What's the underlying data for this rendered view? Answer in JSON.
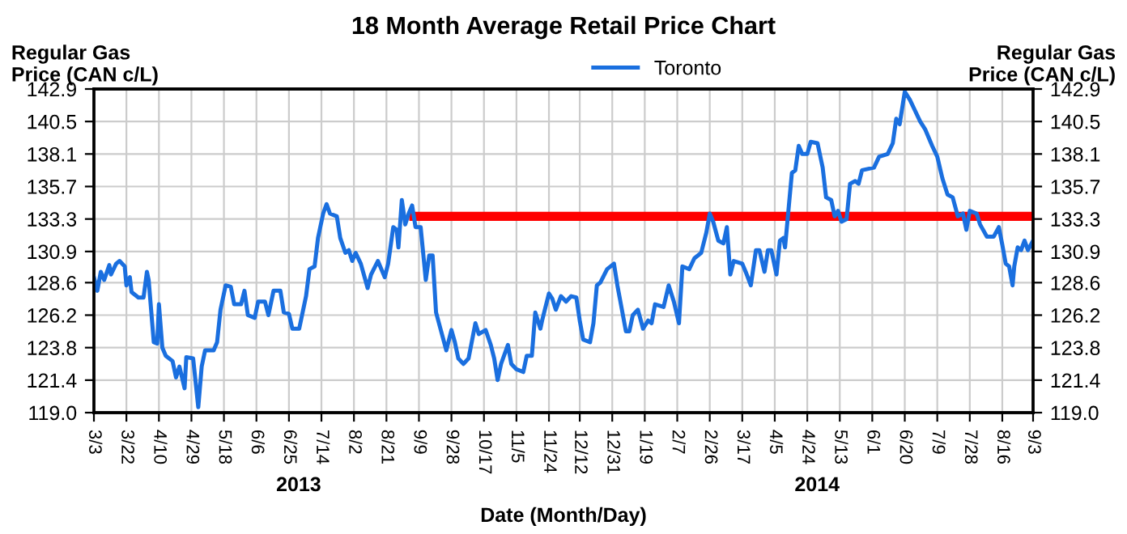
{
  "chart_data": {
    "type": "line",
    "title": "18 Month Average Retail Price Chart",
    "xlabel": "Date (Month/Day)",
    "ylabel": "Regular Gas\nPrice (CAN c/L)",
    "y2label": "Regular Gas\nPrice (CAN c/L)",
    "annotations": [
      "2013",
      "2014"
    ],
    "xlim": [
      "2013-03-03",
      "2014-09-03"
    ],
    "xticks": [
      {
        "value": "2013-03-03",
        "label": "3/3"
      },
      {
        "value": "2013-03-22",
        "label": "3/22"
      },
      {
        "value": "2013-04-10",
        "label": "4/10"
      },
      {
        "value": "2013-04-29",
        "label": "4/29"
      },
      {
        "value": "2013-05-18",
        "label": "5/18"
      },
      {
        "value": "2013-06-06",
        "label": "6/6"
      },
      {
        "value": "2013-06-25",
        "label": "6/25"
      },
      {
        "value": "2013-07-14",
        "label": "7/14"
      },
      {
        "value": "2013-08-02",
        "label": "8/2"
      },
      {
        "value": "2013-08-21",
        "label": "8/21"
      },
      {
        "value": "2013-09-09",
        "label": "9/9"
      },
      {
        "value": "2013-09-28",
        "label": "9/28"
      },
      {
        "value": "2013-10-17",
        "label": "10/17"
      },
      {
        "value": "2013-11-05",
        "label": "11/5"
      },
      {
        "value": "2013-11-24",
        "label": "11/24"
      },
      {
        "value": "2013-12-12",
        "label": "12/12"
      },
      {
        "value": "2013-12-31",
        "label": "12/31"
      },
      {
        "value": "2014-01-19",
        "label": "1/19"
      },
      {
        "value": "2014-02-07",
        "label": "2/7"
      },
      {
        "value": "2014-02-26",
        "label": "2/26"
      },
      {
        "value": "2014-03-17",
        "label": "3/17"
      },
      {
        "value": "2014-04-05",
        "label": "4/5"
      },
      {
        "value": "2014-04-24",
        "label": "4/24"
      },
      {
        "value": "2014-05-13",
        "label": "5/13"
      },
      {
        "value": "2014-06-01",
        "label": "6/1"
      },
      {
        "value": "2014-06-20",
        "label": "6/20"
      },
      {
        "value": "2014-07-09",
        "label": "7/9"
      },
      {
        "value": "2014-07-28",
        "label": "7/28"
      },
      {
        "value": "2014-08-16",
        "label": "8/16"
      },
      {
        "value": "2014-09-03",
        "label": "9/3"
      }
    ],
    "ylim": [
      119.0,
      142.9
    ],
    "yticks": [
      {
        "value": 119.0,
        "label": "119.0"
      },
      121.4,
      123.8,
      126.2,
      128.6,
      130.9,
      133.3,
      135.7,
      138.1,
      140.5,
      142.9
    ],
    "y2lim": [
      119.0,
      142.9
    ],
    "y2ticks": [
      {
        "value": 119.0,
        "label": "119.0"
      },
      121.4,
      123.8,
      126.2,
      128.6,
      130.9,
      133.3,
      135.7,
      138.1,
      140.5,
      142.9
    ],
    "grid": true,
    "legend": "top",
    "marker": "none",
    "line_style": "solid",
    "series": [
      {
        "name": "Toronto",
        "color": "#1a6fdf",
        "x": [
          "2013-03-03",
          "2013-03-05",
          "2013-03-07",
          "2013-03-09",
          "2013-03-12",
          "2013-03-13",
          "2013-03-16",
          "2013-03-18",
          "2013-03-21",
          "2013-03-22",
          "2013-03-24",
          "2013-03-25",
          "2013-03-29",
          "2013-04-01",
          "2013-04-03",
          "2013-04-04",
          "2013-04-07",
          "2013-04-09",
          "2013-04-10",
          "2013-04-12",
          "2013-04-14",
          "2013-04-18",
          "2013-04-20",
          "2013-04-22",
          "2013-04-25",
          "2013-04-26",
          "2013-04-30",
          "2013-05-03",
          "2013-05-05",
          "2013-05-07",
          "2013-05-12",
          "2013-05-14",
          "2013-05-16",
          "2013-05-19",
          "2013-05-22",
          "2013-05-24",
          "2013-05-28",
          "2013-05-30",
          "2013-06-01",
          "2013-06-05",
          "2013-06-07",
          "2013-06-11",
          "2013-06-13",
          "2013-06-16",
          "2013-06-20",
          "2013-06-22",
          "2013-06-25",
          "2013-06-27",
          "2013-07-01",
          "2013-07-05",
          "2013-07-07",
          "2013-07-10",
          "2013-07-12",
          "2013-07-15",
          "2013-07-17",
          "2013-07-19",
          "2013-07-23",
          "2013-07-25",
          "2013-07-28",
          "2013-07-30",
          "2013-08-01",
          "2013-08-03",
          "2013-08-06",
          "2013-08-10",
          "2013-08-12",
          "2013-08-16",
          "2013-08-20",
          "2013-08-22",
          "2013-08-25",
          "2013-08-27",
          "2013-08-28",
          "2013-08-30",
          "2013-09-01",
          "2013-09-03",
          "2013-09-05",
          "2013-09-07",
          "2013-09-10",
          "2013-09-13",
          "2013-09-15",
          "2013-09-17",
          "2013-09-19",
          "2013-09-22",
          "2013-09-25",
          "2013-09-28",
          "2013-09-30",
          "2013-10-02",
          "2013-10-05",
          "2013-10-08",
          "2013-10-12",
          "2013-10-14",
          "2013-10-18",
          "2013-10-21",
          "2013-10-23",
          "2013-10-25",
          "2013-10-27",
          "2013-10-31",
          "2013-11-02",
          "2013-11-05",
          "2013-11-09",
          "2013-11-11",
          "2013-11-14",
          "2013-11-16",
          "2013-11-19",
          "2013-11-20",
          "2013-11-24",
          "2013-11-26",
          "2013-11-28",
          "2013-12-01",
          "2013-12-04",
          "2013-12-07",
          "2013-12-10",
          "2013-12-12",
          "2013-12-14",
          "2013-12-18",
          "2013-12-20",
          "2013-12-22",
          "2013-12-24",
          "2013-12-28",
          "2014-01-01",
          "2014-01-03",
          "2014-01-08",
          "2014-01-10",
          "2014-01-12",
          "2014-01-15",
          "2014-01-18",
          "2014-01-21",
          "2014-01-23",
          "2014-01-25",
          "2014-01-30",
          "2014-02-02",
          "2014-02-05",
          "2014-02-08",
          "2014-02-10",
          "2014-02-14",
          "2014-02-17",
          "2014-02-21",
          "2014-02-24",
          "2014-02-26",
          "2014-02-28",
          "2014-03-03",
          "2014-03-06",
          "2014-03-08",
          "2014-03-10",
          "2014-03-12",
          "2014-03-17",
          "2014-03-19",
          "2014-03-22",
          "2014-03-25",
          "2014-03-27",
          "2014-03-30",
          "2014-04-01",
          "2014-04-03",
          "2014-04-06",
          "2014-04-08",
          "2014-04-10",
          "2014-04-11",
          "2014-04-15",
          "2014-04-17",
          "2014-04-19",
          "2014-04-21",
          "2014-04-24",
          "2014-04-26",
          "2014-04-30",
          "2014-05-03",
          "2014-05-05",
          "2014-05-08",
          "2014-05-10",
          "2014-05-12",
          "2014-05-14",
          "2014-05-17",
          "2014-05-19",
          "2014-05-22",
          "2014-05-24",
          "2014-05-26",
          "2014-06-02",
          "2014-06-05",
          "2014-06-10",
          "2014-06-13",
          "2014-06-15",
          "2014-06-17",
          "2014-06-20",
          "2014-06-23",
          "2014-06-26",
          "2014-06-29",
          "2014-07-02",
          "2014-07-06",
          "2014-07-09",
          "2014-07-12",
          "2014-07-15",
          "2014-07-18",
          "2014-07-21",
          "2014-07-24",
          "2014-07-26",
          "2014-07-28",
          "2014-08-01",
          "2014-08-03",
          "2014-08-07",
          "2014-08-11",
          "2014-08-14",
          "2014-08-16",
          "2014-08-18",
          "2014-08-20",
          "2014-08-22",
          "2014-08-23",
          "2014-08-25",
          "2014-08-27",
          "2014-08-29",
          "2014-08-31",
          "2014-09-03"
        ],
        "values": [
          129.0,
          128.0,
          129.4,
          128.8,
          129.9,
          129.2,
          130.0,
          130.2,
          129.8,
          128.4,
          129.0,
          127.9,
          127.5,
          127.5,
          129.4,
          128.8,
          124.2,
          124.1,
          127.0,
          123.8,
          123.2,
          122.8,
          121.6,
          122.4,
          120.8,
          123.1,
          123.0,
          119.4,
          122.4,
          123.6,
          123.6,
          124.2,
          126.6,
          128.4,
          128.3,
          127.0,
          127.0,
          128.0,
          126.2,
          126.0,
          127.2,
          127.2,
          126.2,
          128.0,
          128.0,
          126.4,
          126.3,
          125.2,
          125.2,
          127.6,
          129.6,
          129.8,
          131.9,
          133.7,
          134.4,
          133.7,
          133.5,
          131.9,
          130.8,
          131.0,
          130.2,
          130.8,
          130.0,
          128.2,
          129.2,
          130.2,
          129.0,
          130.0,
          132.7,
          132.5,
          131.2,
          134.7,
          132.9,
          133.7,
          134.3,
          132.7,
          132.7,
          128.8,
          130.6,
          130.6,
          126.4,
          125.0,
          123.6,
          125.1,
          124.2,
          123.0,
          122.6,
          123.0,
          125.6,
          124.8,
          125.1,
          124.0,
          123.0,
          121.4,
          122.6,
          124.0,
          122.6,
          122.2,
          122.0,
          123.2,
          123.2,
          126.4,
          125.2,
          125.8,
          127.8,
          127.4,
          126.6,
          127.6,
          127.2,
          127.6,
          127.5,
          125.8,
          124.4,
          124.2,
          125.6,
          128.4,
          128.6,
          129.6,
          130.0,
          128.4,
          125.0,
          125.0,
          126.2,
          126.6,
          125.2,
          125.8,
          125.6,
          127.0,
          126.8,
          128.4,
          127.2,
          125.6,
          129.8,
          129.6,
          130.4,
          130.8,
          132.3,
          133.7,
          133.1,
          131.7,
          131.5,
          132.7,
          129.2,
          130.2,
          130.0,
          129.4,
          128.4,
          131.0,
          131.0,
          129.4,
          131.0,
          131.0,
          129.2,
          131.7,
          131.9,
          131.2,
          136.7,
          136.9,
          138.7,
          138.1,
          138.1,
          139.0,
          138.9,
          137.1,
          134.9,
          134.7,
          133.5,
          133.9,
          133.1,
          133.3,
          135.9,
          136.1,
          135.9,
          136.9,
          137.1,
          137.9,
          138.1,
          138.9,
          140.7,
          140.3,
          142.7,
          142.1,
          141.3,
          140.5,
          139.9,
          138.7,
          137.9,
          136.3,
          135.1,
          134.9,
          133.5,
          133.7,
          132.5,
          133.9,
          133.7,
          132.9,
          132.0,
          132.0,
          132.7,
          131.4,
          130.0,
          129.8,
          128.4,
          129.8,
          131.2,
          131.0,
          131.7,
          131.0,
          131.7
        ]
      },
      {
        "color": "#ff0000",
        "x": [
          "2013-09-06",
          "2014-09-03"
        ],
        "values": [
          133.5,
          133.5
        ]
      }
    ]
  }
}
